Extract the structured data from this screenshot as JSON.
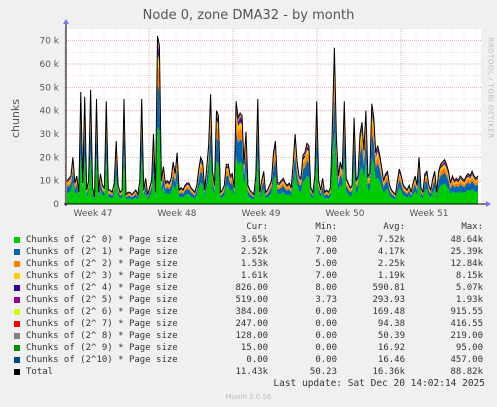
{
  "title": "Node 0, zone DMA32 - by month",
  "ylabel": "chunks",
  "side_label": "RRDTOOL / TOBI OETIKER",
  "footer": "Munin 2.0.56",
  "last_update": "Last update: Sat Dec 20 14:02:14 2025",
  "legend_headers": {
    "cur": "Cur:",
    "min": "Min:",
    "avg": "Avg:",
    "max": "Max:"
  },
  "chart_data": {
    "type": "area",
    "title": "Node 0, zone DMA32 - by month",
    "ylabel": "chunks",
    "ylim": [
      0,
      75000
    ],
    "y_ticks": [
      0,
      10000,
      20000,
      30000,
      40000,
      50000,
      60000,
      70000
    ],
    "y_tick_labels": [
      "0",
      "10 k",
      "20 k",
      "30 k",
      "40 k",
      "50 k",
      "60 k",
      "70 k"
    ],
    "x_ticks": [
      "Week 47",
      "Week 48",
      "Week 49",
      "Week 50",
      "Week 51"
    ],
    "grid": true,
    "stacked": true,
    "series": [
      {
        "name": "Chunks of (2^ 0) * Page size",
        "color": "#00cc00",
        "cur": "3.65k",
        "min": "7.00",
        "avg": "7.52k",
        "max": "48.64k"
      },
      {
        "name": "Chunks of (2^ 1) * Page size",
        "color": "#0066b3",
        "cur": "2.52k",
        "min": "7.00",
        "avg": "4.17k",
        "max": "25.39k"
      },
      {
        "name": "Chunks of (2^ 2) * Page size",
        "color": "#ff8000",
        "cur": "1.53k",
        "min": "5.00",
        "avg": "2.25k",
        "max": "12.84k"
      },
      {
        "name": "Chunks of (2^ 3) * Page size",
        "color": "#ffcc00",
        "cur": "1.61k",
        "min": "7.00",
        "avg": "1.19k",
        "max": "8.15k"
      },
      {
        "name": "Chunks of (2^ 4) * Page size",
        "color": "#330099",
        "cur": "826.00",
        "min": "8.00",
        "avg": "590.81",
        "max": "5.07k"
      },
      {
        "name": "Chunks of (2^ 5) * Page size",
        "color": "#990099",
        "cur": "519.00",
        "min": "3.73",
        "avg": "293.93",
        "max": "1.93k"
      },
      {
        "name": "Chunks of (2^ 6) * Page size",
        "color": "#ccff00",
        "cur": "384.00",
        "min": "0.00",
        "avg": "169.48",
        "max": "915.55"
      },
      {
        "name": "Chunks of (2^ 7) * Page size",
        "color": "#ff0000",
        "cur": "247.00",
        "min": "0.00",
        "avg": "94.38",
        "max": "416.55"
      },
      {
        "name": "Chunks of (2^ 8) * Page size",
        "color": "#808080",
        "cur": "128.00",
        "min": "0.00",
        "avg": "50.39",
        "max": "219.00"
      },
      {
        "name": "Chunks of (2^ 9) * Page size",
        "color": "#008f00",
        "cur": "15.00",
        "min": "0.00",
        "avg": "16.92",
        "max": "95.00"
      },
      {
        "name": "Chunks of (2^10) * Page size",
        "color": "#00487d",
        "cur": "0.00",
        "min": "0.00",
        "avg": "16.46",
        "max": "457.00"
      },
      {
        "name": "Total",
        "color": "#000000",
        "cur": "11.43k",
        "min": "50.23",
        "avg": "16.36k",
        "max": "88.82k"
      }
    ],
    "total_samples": [
      10,
      11,
      12,
      20,
      9,
      12,
      5,
      48,
      9,
      46,
      6,
      10,
      49,
      7,
      3,
      45,
      5,
      13,
      8,
      7,
      44,
      6,
      6,
      5,
      9,
      27,
      8,
      5,
      6,
      45,
      4,
      5,
      5,
      4,
      5,
      6,
      4,
      10,
      45,
      6,
      11,
      4,
      7,
      10,
      30,
      5,
      72,
      68,
      10,
      16,
      9,
      10,
      9,
      11,
      18,
      13,
      22,
      6,
      7,
      6,
      8,
      9,
      9,
      7,
      6,
      5,
      8,
      15,
      20,
      18,
      6,
      15,
      25,
      47,
      14,
      8,
      40,
      38,
      5,
      6,
      8,
      17,
      17,
      12,
      13,
      7,
      44,
      37,
      39,
      38,
      17,
      31,
      8,
      6,
      5,
      4,
      12,
      45,
      5,
      10,
      14,
      5,
      6,
      8,
      10,
      22,
      27,
      9,
      9,
      10,
      11,
      9,
      8,
      9,
      7,
      17,
      30,
      18,
      12,
      11,
      21,
      22,
      26,
      25,
      7,
      5,
      12,
      44,
      10,
      6,
      11,
      5,
      6,
      5,
      7,
      35,
      67,
      28,
      12,
      18,
      15,
      44,
      11,
      9,
      7,
      8,
      37,
      10,
      12,
      30,
      35,
      23,
      40,
      12,
      13,
      43,
      37,
      22,
      25,
      21,
      16,
      10,
      13,
      14,
      8,
      6,
      5,
      4,
      10,
      15,
      12,
      8,
      7,
      6,
      8,
      5,
      9,
      12,
      8,
      20,
      7,
      5,
      13,
      14,
      8,
      6,
      11,
      14,
      5,
      14,
      17,
      18,
      19,
      17,
      14,
      9,
      12,
      10,
      11,
      10,
      12,
      11,
      10,
      12,
      13,
      12,
      14,
      12,
      11,
      12
    ]
  }
}
